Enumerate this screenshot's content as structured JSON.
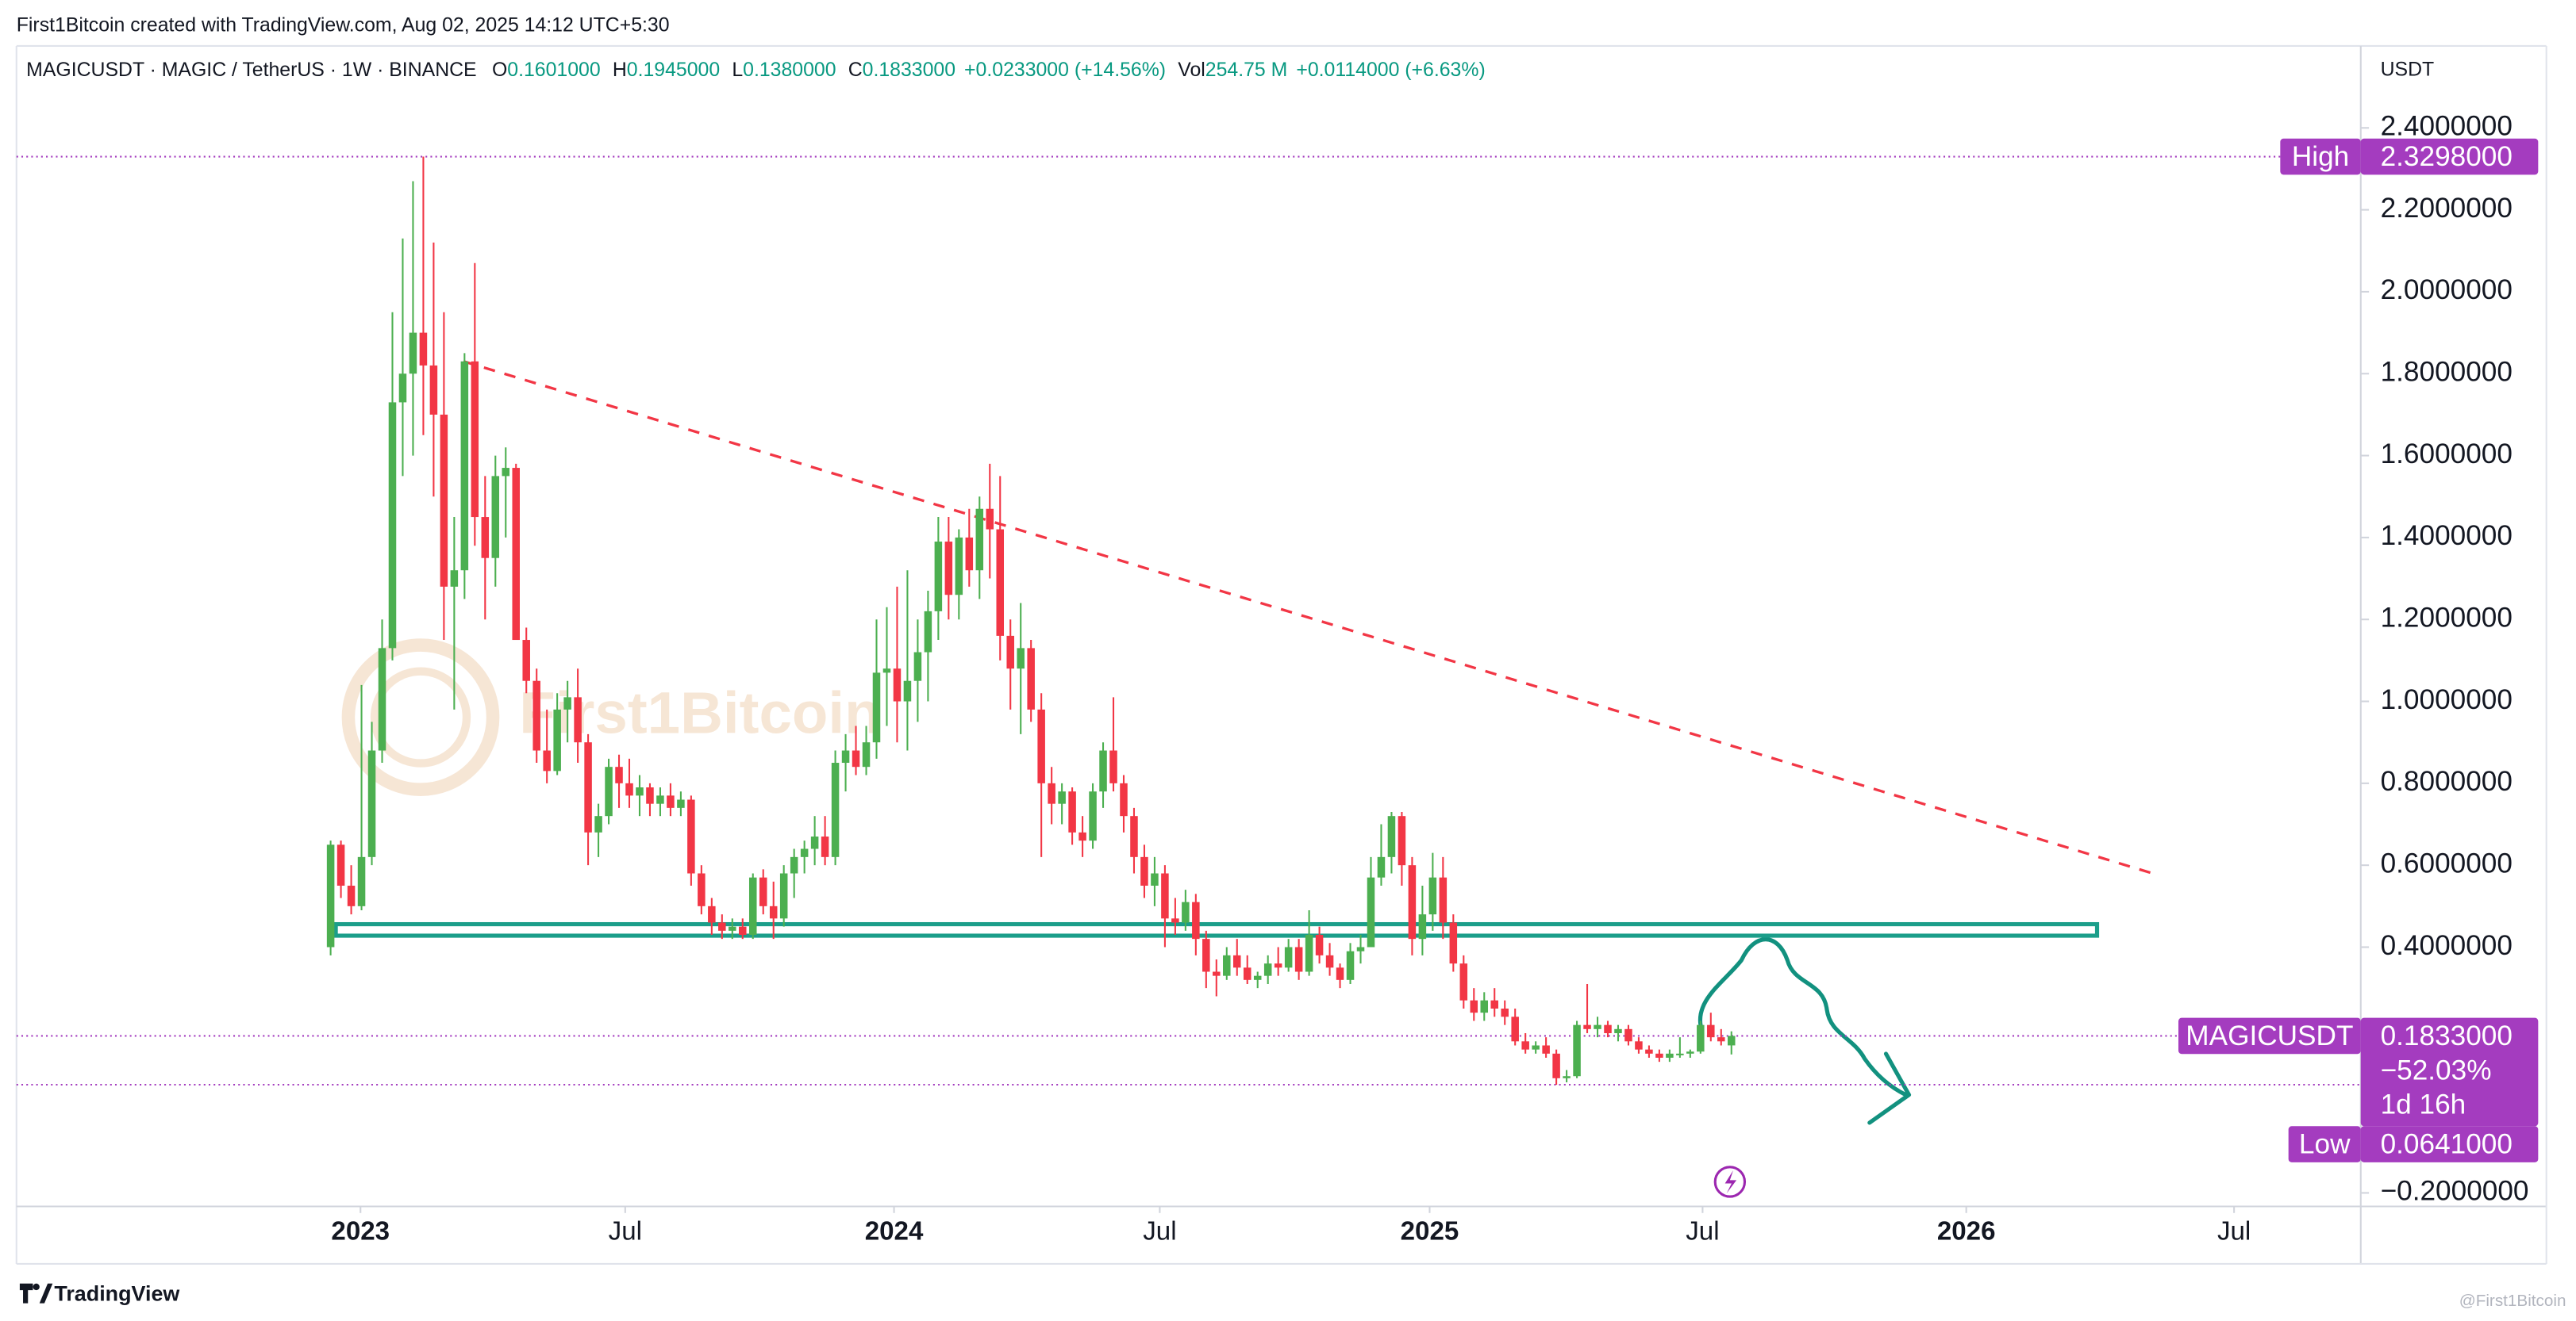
{
  "header": {
    "credit": "First1Bitcoin created with TradingView.com, Aug 02, 2025 14:12 UTC+5:30",
    "symbol": "MAGICUSDT · MAGIC / TetherUS · 1W · BINANCE",
    "ohlc": [
      {
        "key": "O",
        "value": "0.1601000"
      },
      {
        "key": "H",
        "value": "0.1945000"
      },
      {
        "key": "L",
        "value": "0.1380000"
      },
      {
        "key": "C",
        "value": "0.1833000"
      }
    ],
    "change": "+0.0233000 (+14.56%)",
    "vol_label": "Vol",
    "vol": "254.75 M",
    "vol_change": "+0.0114000 (+6.63%)"
  },
  "axis_unit": "USDT",
  "footer": "TradingView",
  "watermark": "First1Bitcoin",
  "corner_mark": "@First1Bitcoin",
  "chart_data": {
    "type": "candlestick",
    "up_color": "#4caf50",
    "down_color": "#f23645",
    "badge_color": "#a43cbf",
    "xlim": [
      -30.5,
      197.1
    ],
    "ylim": [
      -0.233,
      2.6
    ],
    "xticks": [
      {
        "value": 2.9,
        "label": "2023"
      },
      {
        "value": 28.6,
        "label": "Jul"
      },
      {
        "value": 54.7,
        "label": "2024"
      },
      {
        "value": 80.5,
        "label": "Jul"
      },
      {
        "value": 106.7,
        "label": "2025"
      },
      {
        "value": 133.2,
        "label": "Jul"
      },
      {
        "value": 158.8,
        "label": "2026"
      },
      {
        "value": 184.8,
        "label": "Jul"
      }
    ],
    "yticks": [
      {
        "value": 2.4,
        "label": "2.4000000"
      },
      {
        "value": 2.2,
        "label": "2.2000000"
      },
      {
        "value": 2,
        "label": "2.0000000"
      },
      {
        "value": 1.8,
        "label": "1.8000000"
      },
      {
        "value": 1.6,
        "label": "1.6000000"
      },
      {
        "value": 1.4,
        "label": "1.4000000"
      },
      {
        "value": 1.2,
        "label": "1.2000000"
      },
      {
        "value": 1,
        "label": "1.0000000"
      },
      {
        "value": 0.8,
        "label": "0.8000000"
      },
      {
        "value": 0.6,
        "label": "0.6000000"
      },
      {
        "value": 0.4,
        "label": "0.4000000"
      },
      {
        "value": -0.2,
        "label": "−0.2000000"
      }
    ],
    "candles": [
      [
        0.4,
        0.66,
        0.38,
        0.65
      ],
      [
        0.65,
        0.66,
        0.52,
        0.55
      ],
      [
        0.55,
        0.6,
        0.48,
        0.5
      ],
      [
        0.5,
        1.04,
        0.49,
        0.62
      ],
      [
        0.62,
        0.95,
        0.6,
        0.88
      ],
      [
        0.88,
        1.2,
        0.85,
        1.13
      ],
      [
        1.13,
        1.95,
        1.1,
        1.73
      ],
      [
        1.73,
        2.13,
        1.55,
        1.8
      ],
      [
        1.8,
        2.27,
        1.6,
        1.9
      ],
      [
        1.9,
        2.33,
        1.65,
        1.82
      ],
      [
        1.82,
        2.12,
        1.5,
        1.7
      ],
      [
        1.7,
        1.95,
        1.15,
        1.28
      ],
      [
        1.28,
        1.45,
        0.98,
        1.32
      ],
      [
        1.32,
        1.85,
        1.25,
        1.83
      ],
      [
        1.83,
        2.07,
        1.38,
        1.45
      ],
      [
        1.45,
        1.55,
        1.2,
        1.35
      ],
      [
        1.35,
        1.6,
        1.28,
        1.55
      ],
      [
        1.55,
        1.62,
        1.4,
        1.57
      ],
      [
        1.57,
        1.58,
        1.15,
        1.15
      ],
      [
        1.15,
        1.18,
        1.02,
        1.05
      ],
      [
        1.05,
        1.08,
        0.85,
        0.88
      ],
      [
        0.88,
        0.98,
        0.8,
        0.83
      ],
      [
        0.83,
        1.02,
        0.82,
        0.98
      ],
      [
        0.98,
        1.05,
        0.9,
        1.01
      ],
      [
        1.01,
        1.08,
        0.85,
        0.9
      ],
      [
        0.9,
        0.92,
        0.6,
        0.68
      ],
      [
        0.68,
        0.75,
        0.62,
        0.72
      ],
      [
        0.72,
        0.86,
        0.7,
        0.84
      ],
      [
        0.84,
        0.87,
        0.74,
        0.8
      ],
      [
        0.8,
        0.86,
        0.74,
        0.77
      ],
      [
        0.77,
        0.82,
        0.72,
        0.79
      ],
      [
        0.79,
        0.8,
        0.72,
        0.75
      ],
      [
        0.75,
        0.79,
        0.72,
        0.77
      ],
      [
        0.77,
        0.8,
        0.72,
        0.74
      ],
      [
        0.74,
        0.78,
        0.72,
        0.76
      ],
      [
        0.76,
        0.77,
        0.55,
        0.58
      ],
      [
        0.58,
        0.6,
        0.48,
        0.5
      ],
      [
        0.5,
        0.52,
        0.43,
        0.46
      ],
      [
        0.46,
        0.48,
        0.42,
        0.44
      ],
      [
        0.44,
        0.47,
        0.42,
        0.45
      ],
      [
        0.45,
        0.47,
        0.42,
        0.43
      ],
      [
        0.43,
        0.58,
        0.42,
        0.57
      ],
      [
        0.57,
        0.59,
        0.48,
        0.5
      ],
      [
        0.5,
        0.56,
        0.42,
        0.47
      ],
      [
        0.47,
        0.6,
        0.45,
        0.58
      ],
      [
        0.58,
        0.64,
        0.52,
        0.62
      ],
      [
        0.62,
        0.66,
        0.58,
        0.64
      ],
      [
        0.64,
        0.72,
        0.6,
        0.67
      ],
      [
        0.67,
        0.72,
        0.6,
        0.62
      ],
      [
        0.62,
        0.88,
        0.6,
        0.85
      ],
      [
        0.85,
        0.92,
        0.78,
        0.88
      ],
      [
        0.88,
        0.94,
        0.82,
        0.84
      ],
      [
        0.84,
        0.94,
        0.82,
        0.9
      ],
      [
        0.9,
        1.2,
        0.86,
        1.07
      ],
      [
        1.07,
        1.23,
        0.94,
        1.08
      ],
      [
        1.08,
        1.28,
        0.9,
        1.0
      ],
      [
        1.0,
        1.32,
        0.88,
        1.05
      ],
      [
        1.05,
        1.2,
        0.95,
        1.12
      ],
      [
        1.12,
        1.27,
        1.0,
        1.22
      ],
      [
        1.22,
        1.45,
        1.15,
        1.39
      ],
      [
        1.39,
        1.45,
        1.2,
        1.26
      ],
      [
        1.26,
        1.42,
        1.2,
        1.4
      ],
      [
        1.4,
        1.47,
        1.28,
        1.32
      ],
      [
        1.32,
        1.5,
        1.25,
        1.47
      ],
      [
        1.47,
        1.58,
        1.3,
        1.42
      ],
      [
        1.42,
        1.55,
        1.1,
        1.16
      ],
      [
        1.16,
        1.2,
        0.98,
        1.08
      ],
      [
        1.08,
        1.24,
        0.92,
        1.13
      ],
      [
        1.13,
        1.15,
        0.95,
        0.98
      ],
      [
        0.98,
        1.02,
        0.62,
        0.8
      ],
      [
        0.8,
        0.84,
        0.7,
        0.75
      ],
      [
        0.75,
        0.8,
        0.7,
        0.78
      ],
      [
        0.78,
        0.79,
        0.65,
        0.68
      ],
      [
        0.68,
        0.72,
        0.62,
        0.66
      ],
      [
        0.66,
        0.8,
        0.64,
        0.78
      ],
      [
        0.78,
        0.9,
        0.74,
        0.88
      ],
      [
        0.88,
        1.01,
        0.78,
        0.8
      ],
      [
        0.8,
        0.82,
        0.68,
        0.72
      ],
      [
        0.72,
        0.74,
        0.58,
        0.62
      ],
      [
        0.62,
        0.65,
        0.52,
        0.55
      ],
      [
        0.55,
        0.62,
        0.5,
        0.58
      ],
      [
        0.58,
        0.6,
        0.4,
        0.47
      ],
      [
        0.47,
        0.52,
        0.43,
        0.46
      ],
      [
        0.46,
        0.54,
        0.44,
        0.51
      ],
      [
        0.51,
        0.53,
        0.38,
        0.42
      ],
      [
        0.42,
        0.44,
        0.3,
        0.34
      ],
      [
        0.34,
        0.37,
        0.28,
        0.33
      ],
      [
        0.33,
        0.4,
        0.32,
        0.38
      ],
      [
        0.38,
        0.42,
        0.33,
        0.35
      ],
      [
        0.35,
        0.38,
        0.31,
        0.32
      ],
      [
        0.32,
        0.34,
        0.3,
        0.33
      ],
      [
        0.33,
        0.38,
        0.31,
        0.36
      ],
      [
        0.36,
        0.4,
        0.33,
        0.35
      ],
      [
        0.35,
        0.42,
        0.34,
        0.4
      ],
      [
        0.4,
        0.42,
        0.32,
        0.34
      ],
      [
        0.34,
        0.49,
        0.33,
        0.43
      ],
      [
        0.43,
        0.45,
        0.36,
        0.38
      ],
      [
        0.38,
        0.41,
        0.33,
        0.35
      ],
      [
        0.35,
        0.36,
        0.3,
        0.32
      ],
      [
        0.32,
        0.41,
        0.31,
        0.39
      ],
      [
        0.39,
        0.43,
        0.36,
        0.4
      ],
      [
        0.4,
        0.62,
        0.4,
        0.57
      ],
      [
        0.57,
        0.7,
        0.55,
        0.62
      ],
      [
        0.62,
        0.73,
        0.58,
        0.72
      ],
      [
        0.72,
        0.73,
        0.55,
        0.6
      ],
      [
        0.6,
        0.62,
        0.38,
        0.42
      ],
      [
        0.42,
        0.55,
        0.38,
        0.48
      ],
      [
        0.48,
        0.63,
        0.44,
        0.57
      ],
      [
        0.57,
        0.62,
        0.42,
        0.46
      ],
      [
        0.46,
        0.48,
        0.34,
        0.36
      ],
      [
        0.36,
        0.38,
        0.25,
        0.27
      ],
      [
        0.27,
        0.3,
        0.22,
        0.24
      ],
      [
        0.24,
        0.29,
        0.22,
        0.27
      ],
      [
        0.27,
        0.3,
        0.23,
        0.25
      ],
      [
        0.25,
        0.27,
        0.21,
        0.23
      ],
      [
        0.23,
        0.25,
        0.16,
        0.17
      ],
      [
        0.17,
        0.19,
        0.14,
        0.15
      ],
      [
        0.15,
        0.17,
        0.14,
        0.16
      ],
      [
        0.16,
        0.18,
        0.13,
        0.14
      ],
      [
        0.14,
        0.15,
        0.064,
        0.08
      ],
      [
        0.08,
        0.1,
        0.07,
        0.085
      ],
      [
        0.085,
        0.22,
        0.08,
        0.21
      ],
      [
        0.21,
        0.31,
        0.19,
        0.2
      ],
      [
        0.2,
        0.23,
        0.18,
        0.21
      ],
      [
        0.21,
        0.22,
        0.18,
        0.19
      ],
      [
        0.19,
        0.21,
        0.17,
        0.2
      ],
      [
        0.2,
        0.21,
        0.16,
        0.17
      ],
      [
        0.17,
        0.18,
        0.14,
        0.15
      ],
      [
        0.15,
        0.16,
        0.13,
        0.14
      ],
      [
        0.14,
        0.15,
        0.12,
        0.13
      ],
      [
        0.13,
        0.15,
        0.12,
        0.14
      ],
      [
        0.14,
        0.18,
        0.13,
        0.14
      ],
      [
        0.14,
        0.15,
        0.13,
        0.145
      ],
      [
        0.145,
        0.22,
        0.14,
        0.21
      ],
      [
        0.21,
        0.24,
        0.17,
        0.18
      ],
      [
        0.18,
        0.2,
        0.16,
        0.17
      ],
      [
        0.1601,
        0.1945,
        0.138,
        0.1833
      ]
    ],
    "trendline": {
      "x": [
        12.9,
        176.9
      ],
      "y": [
        1.83,
        0.58
      ],
      "color": "#f23645"
    },
    "support_zone": {
      "x": [
        0.5,
        171.5
      ],
      "y": [
        0.428,
        0.456
      ],
      "color": "#1b9e8a"
    },
    "high": {
      "label": "High",
      "value": 2.3298,
      "value_label": "2.3298000"
    },
    "last": {
      "label": "MAGICUSDT",
      "value": 0.1833,
      "value_label": "0.1833000",
      "change": "−52.03%",
      "countdown": "1d 16h"
    },
    "low": {
      "label": "Low",
      "value": 0.0641,
      "value_label": "0.0641000"
    }
  }
}
